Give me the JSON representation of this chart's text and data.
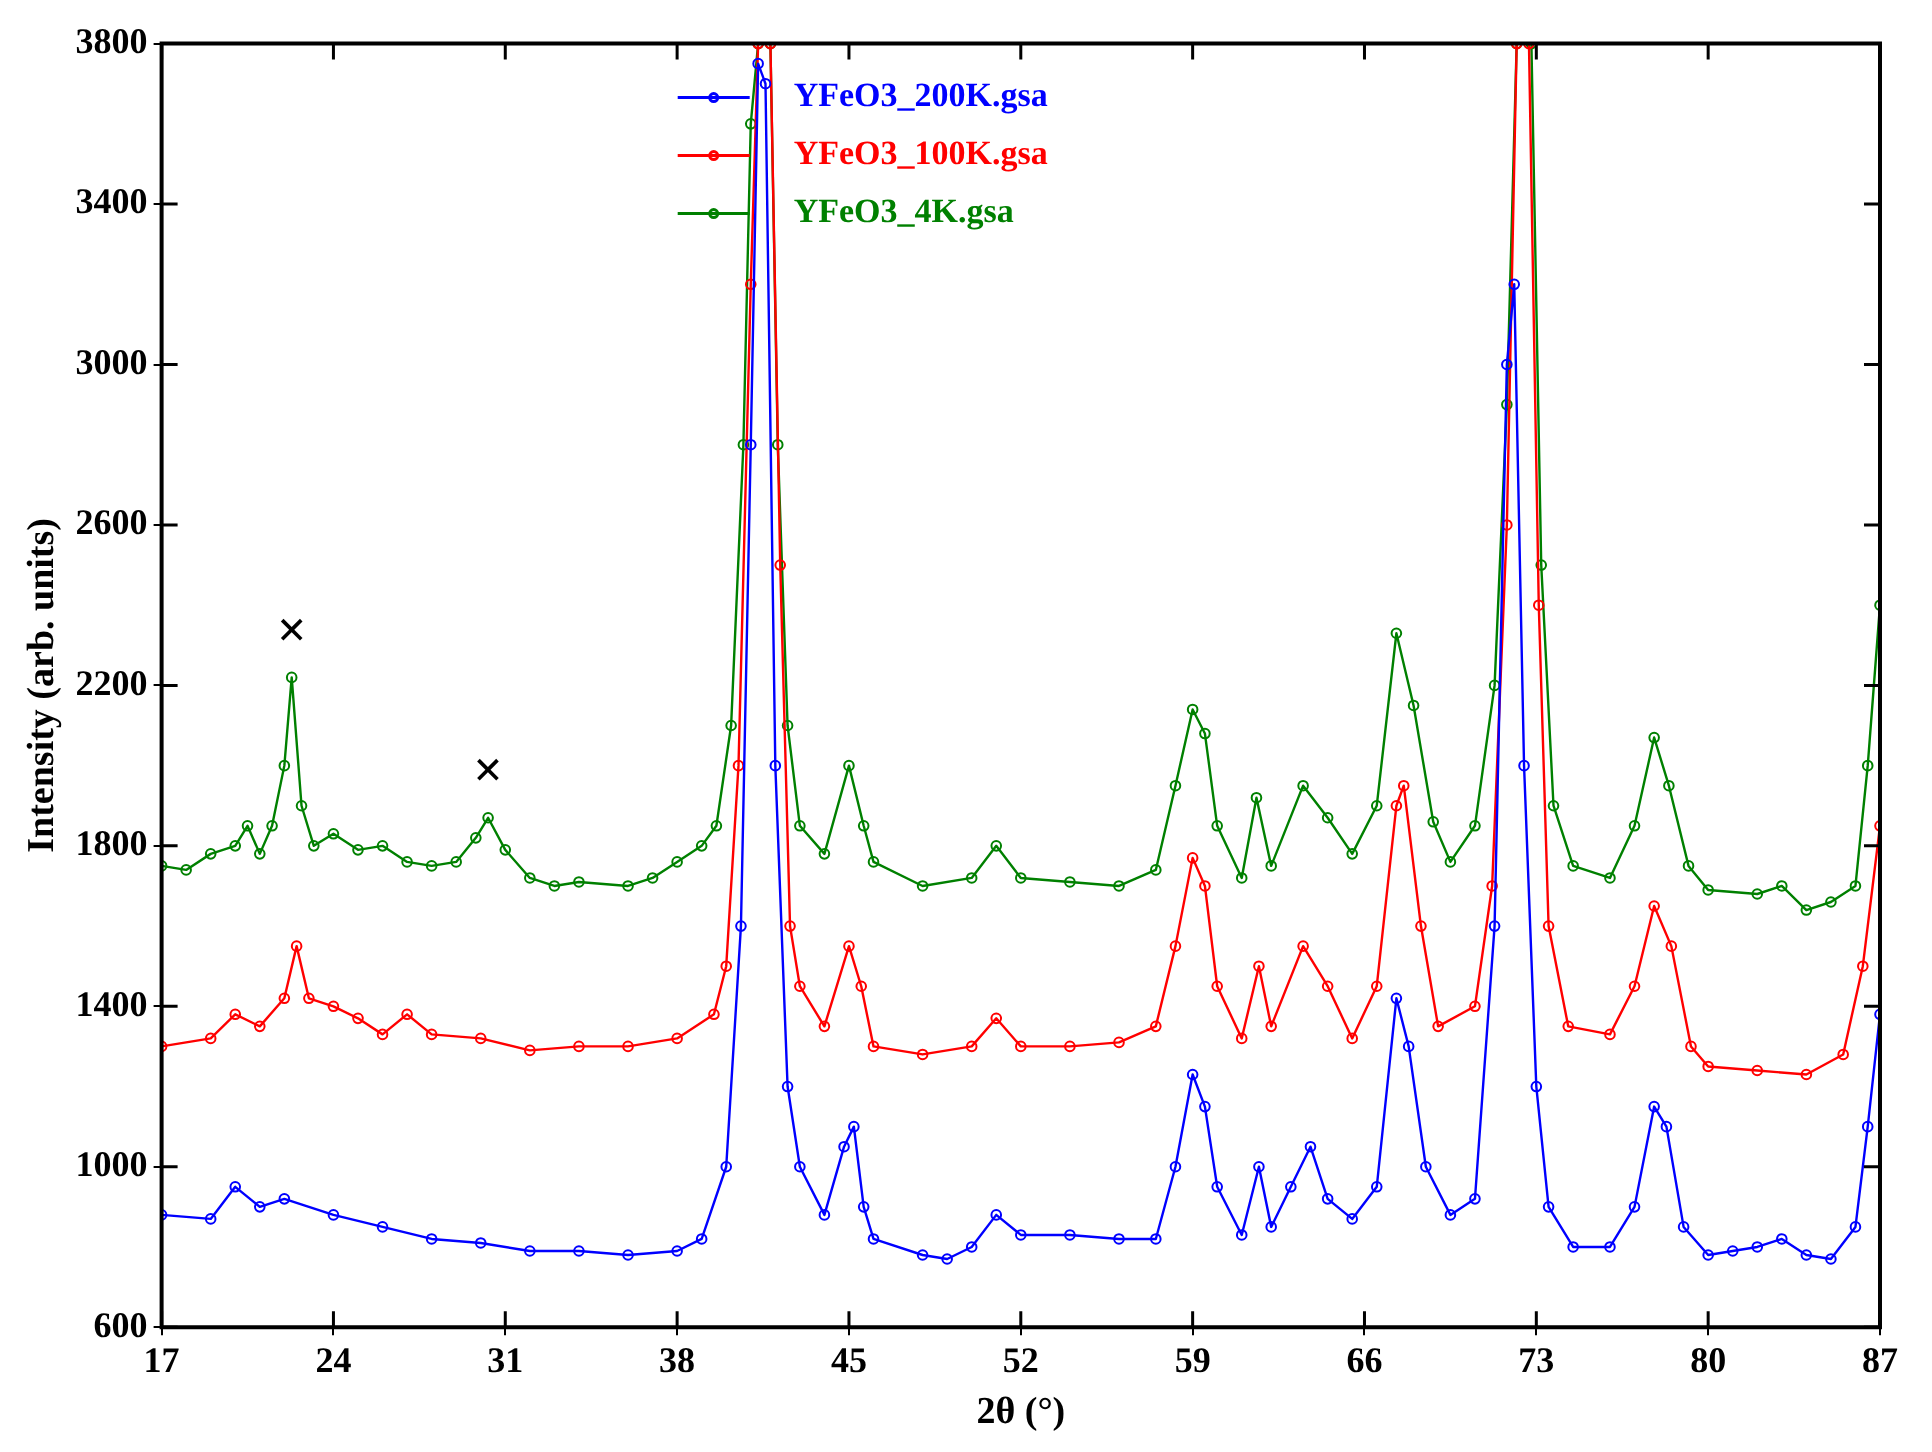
{
  "chart_data": {
    "type": "line",
    "xlabel": "2θ (°)",
    "ylabel": "Intensity (arb. units)",
    "xlim": [
      17,
      87
    ],
    "ylim": [
      600,
      3800
    ],
    "xticks": [
      17,
      24,
      31,
      38,
      45,
      52,
      59,
      66,
      73,
      80,
      87
    ],
    "yticks": [
      600,
      1000,
      1400,
      1800,
      2200,
      2600,
      3000,
      3400,
      3800
    ],
    "grid": false,
    "legend": "top",
    "marker": "circle",
    "line_style": "solid",
    "annotations": [
      {
        "text": "×",
        "x": 22.3,
        "y": 2220
      },
      {
        "text": "×",
        "x": 30.3,
        "y": 1870
      }
    ],
    "series": [
      {
        "name": "YFeO3_200K.gsa",
        "color": "#0000ff",
        "x": [
          17,
          19,
          20,
          21,
          22,
          24,
          26,
          28,
          30,
          32,
          34,
          36,
          38,
          39,
          40,
          40.6,
          41,
          41.3,
          41.6,
          42,
          42.5,
          43,
          44,
          44.8,
          45.2,
          45.6,
          46,
          48,
          49,
          50,
          51,
          52,
          54,
          56,
          57.5,
          58.3,
          59,
          59.5,
          60,
          61,
          61.7,
          62.2,
          63,
          63.8,
          64.5,
          65.5,
          66.5,
          67.3,
          67.8,
          68.5,
          69.5,
          70.5,
          71.3,
          71.8,
          72.1,
          72.5,
          73,
          73.5,
          74.5,
          76,
          77,
          77.8,
          78.3,
          79,
          80,
          81,
          82,
          83,
          84,
          85,
          86,
          86.5,
          87
        ],
        "values": [
          880,
          870,
          950,
          900,
          920,
          880,
          850,
          820,
          810,
          790,
          790,
          780,
          790,
          820,
          1000,
          1600,
          2800,
          3750,
          3700,
          2000,
          1200,
          1000,
          880,
          1050,
          1100,
          900,
          820,
          780,
          770,
          800,
          880,
          830,
          830,
          820,
          820,
          1000,
          1230,
          1150,
          950,
          830,
          1000,
          850,
          950,
          1050,
          920,
          870,
          950,
          1420,
          1300,
          1000,
          880,
          920,
          1600,
          3000,
          3200,
          2000,
          1200,
          900,
          800,
          800,
          900,
          1150,
          1100,
          850,
          780,
          790,
          800,
          820,
          780,
          770,
          850,
          1100,
          1380
        ]
      },
      {
        "name": "YFeO3_100K.gsa",
        "color": "#ff0000",
        "x": [
          17,
          19,
          20,
          21,
          22,
          22.5,
          23,
          24,
          25,
          26,
          27,
          28,
          30,
          32,
          34,
          36,
          38,
          39.5,
          40,
          40.5,
          41,
          41.3,
          41.8,
          42.2,
          42.6,
          43,
          44,
          45,
          45.5,
          46,
          48,
          50,
          51,
          52,
          54,
          56,
          57.5,
          58.3,
          59,
          59.5,
          60,
          61,
          61.7,
          62.2,
          63.5,
          64.5,
          65.5,
          66.5,
          67.3,
          67.6,
          68.3,
          69,
          70.5,
          71.2,
          71.8,
          72.2,
          72.7,
          73.1,
          73.5,
          74.3,
          76,
          77,
          77.8,
          78.5,
          79.3,
          80,
          82,
          84,
          85.5,
          86.3,
          87
        ],
        "values": [
          1300,
          1320,
          1380,
          1350,
          1420,
          1550,
          1420,
          1400,
          1370,
          1330,
          1380,
          1330,
          1320,
          1290,
          1300,
          1300,
          1320,
          1380,
          1500,
          2000,
          3200,
          3800,
          3800,
          2500,
          1600,
          1450,
          1350,
          1550,
          1450,
          1300,
          1280,
          1300,
          1370,
          1300,
          1300,
          1310,
          1350,
          1550,
          1770,
          1700,
          1450,
          1320,
          1500,
          1350,
          1550,
          1450,
          1320,
          1450,
          1900,
          1950,
          1600,
          1350,
          1400,
          1700,
          2600,
          3800,
          3800,
          2400,
          1600,
          1350,
          1330,
          1450,
          1650,
          1550,
          1300,
          1250,
          1240,
          1230,
          1280,
          1500,
          1850
        ]
      },
      {
        "name": "YFeO3_4K.gsa",
        "color": "#008000",
        "x": [
          17,
          18,
          19,
          20,
          20.5,
          21,
          21.5,
          22,
          22.3,
          22.7,
          23.2,
          24,
          25,
          26,
          27,
          28,
          29,
          29.8,
          30.3,
          31,
          32,
          33,
          34,
          36,
          37,
          38,
          39,
          39.6,
          40.2,
          40.7,
          41,
          41.3,
          41.8,
          42.1,
          42.5,
          43,
          44,
          45,
          45.6,
          46,
          48,
          50,
          51,
          52,
          54,
          56,
          57.5,
          58.3,
          59,
          59.5,
          60,
          61,
          61.6,
          62.2,
          63.5,
          64.5,
          65.5,
          66.5,
          67.3,
          68,
          68.8,
          69.5,
          70.5,
          71.3,
          71.8,
          72.2,
          72.8,
          73.2,
          73.7,
          74.5,
          76,
          77,
          77.8,
          78.4,
          79.2,
          80,
          82,
          83,
          84,
          85,
          86,
          86.5,
          87
        ],
        "values": [
          1750,
          1740,
          1780,
          1800,
          1850,
          1780,
          1850,
          2000,
          2220,
          1900,
          1800,
          1830,
          1790,
          1800,
          1760,
          1750,
          1760,
          1820,
          1870,
          1790,
          1720,
          1700,
          1710,
          1700,
          1720,
          1760,
          1800,
          1850,
          2100,
          2800,
          3600,
          3800,
          3800,
          2800,
          2100,
          1850,
          1780,
          2000,
          1850,
          1760,
          1700,
          1720,
          1800,
          1720,
          1710,
          1700,
          1740,
          1950,
          2140,
          2080,
          1850,
          1720,
          1920,
          1750,
          1950,
          1870,
          1780,
          1900,
          2330,
          2150,
          1860,
          1760,
          1850,
          2200,
          2900,
          3800,
          3800,
          2500,
          1900,
          1750,
          1720,
          1850,
          2070,
          1950,
          1750,
          1690,
          1680,
          1700,
          1640,
          1660,
          1700,
          2000,
          2400
        ]
      }
    ]
  }
}
